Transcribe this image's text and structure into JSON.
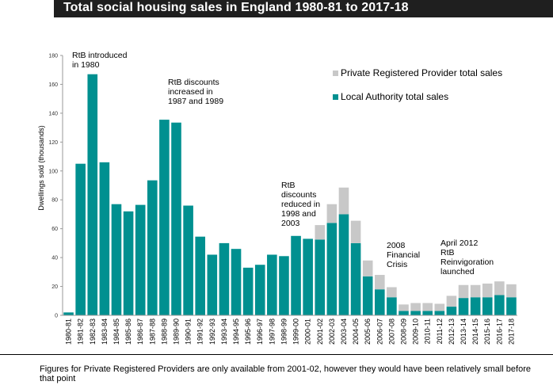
{
  "chart_data": {
    "type": "bar",
    "stacked": true,
    "title": "Total social housing sales in England 1980-81 to 2017-18",
    "ylabel": "Dwellings sold (thousands)",
    "xlabel": "",
    "ylim": [
      0,
      180
    ],
    "yticks": [
      "0",
      "20",
      "40",
      "60",
      "80",
      "100",
      "120",
      "140",
      "160",
      "180"
    ],
    "grid": false,
    "legend_position": "top-right",
    "categories": [
      "1980-81",
      "1981-82",
      "1982-83",
      "1983-84",
      "1984-85",
      "1985-86",
      "1986-87",
      "1987-88",
      "1988-89",
      "1989-90",
      "1990-91",
      "1991-92",
      "1992-93",
      "1993-94",
      "1994-95",
      "1995-96",
      "1996-97",
      "1997-98",
      "1998-99",
      "1999-00",
      "2000-01",
      "2001-02",
      "2002-03",
      "2003-04",
      "2004-05",
      "2005-06",
      "2006-07",
      "2007-08",
      "2008-09",
      "2009-10",
      "2010-11",
      "2011-12",
      "2012-13",
      "2013-14",
      "2014-15",
      "2015-16",
      "2016-17",
      "2017-18"
    ],
    "series": [
      {
        "name": "Local Authority total sales",
        "color": "#009090",
        "values": [
          2,
          105,
          167,
          106,
          77,
          72,
          76.5,
          93.5,
          135.5,
          133.5,
          76,
          54.5,
          42,
          50,
          46,
          33,
          35,
          42,
          41,
          55,
          53,
          52.5,
          64,
          70,
          50,
          27,
          18,
          12.5,
          3,
          3,
          3,
          3,
          6,
          12,
          12.5,
          12.5,
          14,
          12.5
        ]
      },
      {
        "name": "Private Registered Provider total sales",
        "color": "#c8c8c8",
        "values": [
          0,
          0,
          0,
          0,
          0,
          0,
          0,
          0,
          0,
          0,
          0,
          0,
          0,
          0,
          0,
          0,
          0,
          0,
          0,
          0,
          0,
          10,
          13,
          18.5,
          15.5,
          11,
          10,
          7,
          4.5,
          5.5,
          5.5,
          5,
          7.5,
          9,
          8.5,
          9.5,
          9.5,
          9
        ]
      }
    ],
    "annotations": [
      {
        "lines": [
          "RtB introduced",
          "in 1980"
        ]
      },
      {
        "lines": [
          "RtB discounts",
          "increased  in",
          "1987 and 1989"
        ]
      },
      {
        "lines": [
          "RtB",
          "discounts",
          "reduced in",
          "1998 and",
          "2003"
        ]
      },
      {
        "lines": [
          "2008",
          "Financial",
          "Crisis"
        ]
      },
      {
        "lines": [
          "April 2012",
          "RtB",
          "Reinvigoration",
          "launched"
        ]
      }
    ]
  },
  "footnote": "Figures for Private Registered Providers are only available from 2001-02, however they would have been relatively small before that point"
}
